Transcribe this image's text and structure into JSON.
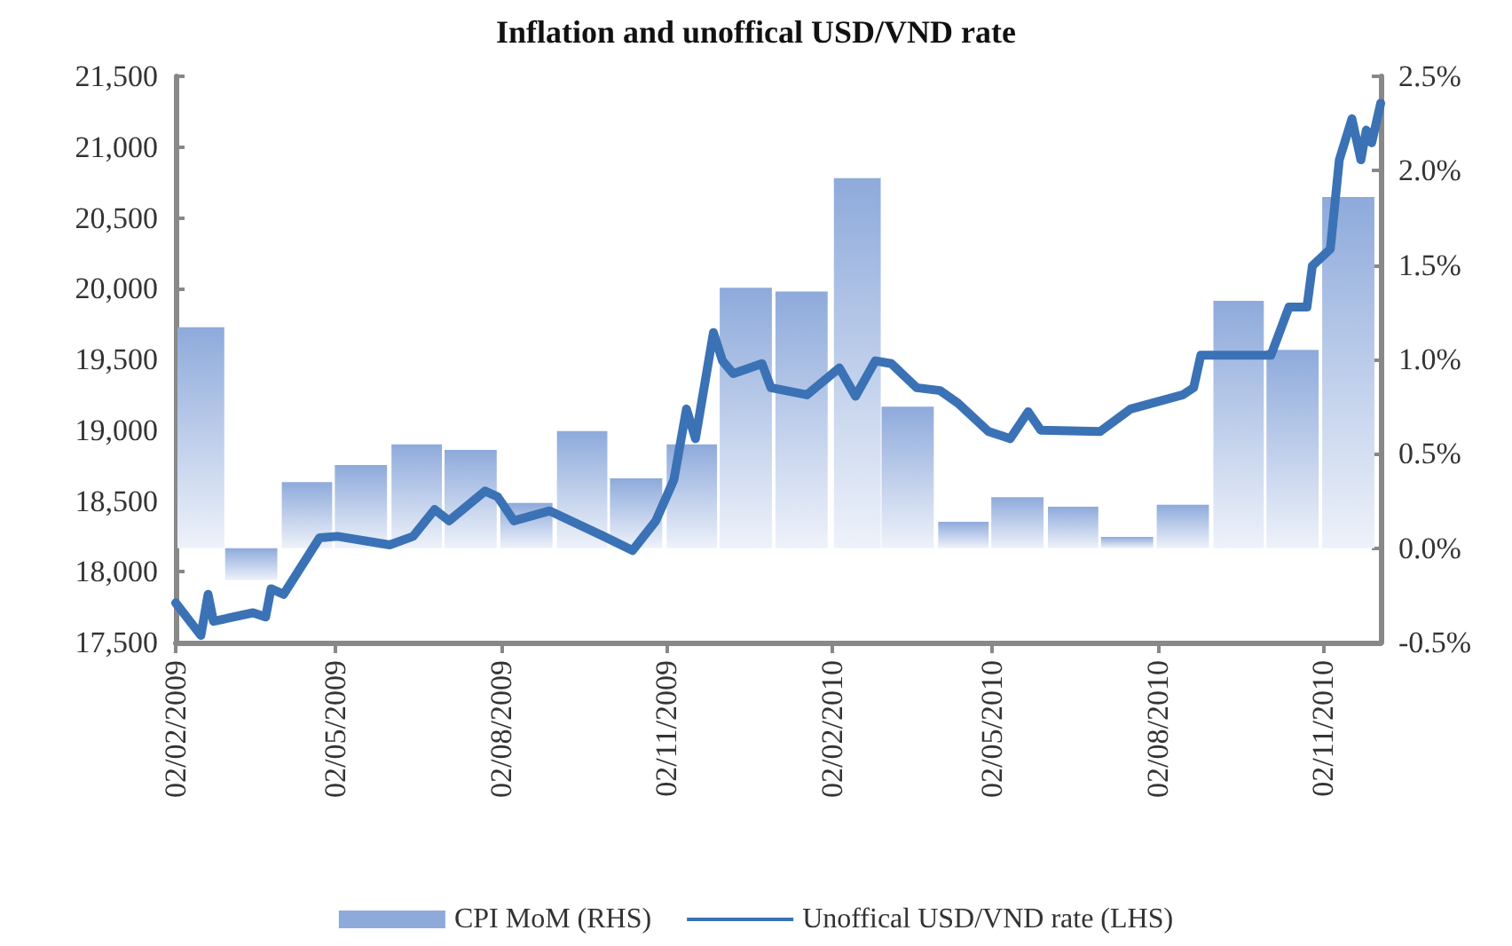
{
  "chart_data": {
    "type": "line",
    "title": "Inflation and unoffical USD/VND rate",
    "xlim": [
      "2009-02-02",
      "2010-12-04"
    ],
    "xticks": [
      {
        "value": "2009-02-02",
        "label": "02/02/2009"
      },
      {
        "value": "2009-05-02",
        "label": "02/05/2009"
      },
      {
        "value": "2009-08-02",
        "label": "02/08/2009"
      },
      {
        "value": "2009-11-02",
        "label": "02/11/2009"
      },
      {
        "value": "2010-02-02",
        "label": "02/02/2010"
      },
      {
        "value": "2010-05-02",
        "label": "02/05/2010"
      },
      {
        "value": "2010-08-02",
        "label": "02/08/2010"
      },
      {
        "value": "2010-11-02",
        "label": "02/11/2010"
      }
    ],
    "ylim": [
      17500,
      21500
    ],
    "yticks": [
      {
        "value": 17500,
        "label": "17,500"
      },
      {
        "value": 18000,
        "label": "18,000"
      },
      {
        "value": 18500,
        "label": "18,500"
      },
      {
        "value": 19000,
        "label": "19,000"
      },
      {
        "value": 19500,
        "label": "19,500"
      },
      {
        "value": 20000,
        "label": "20,000"
      },
      {
        "value": 20500,
        "label": "20,500"
      },
      {
        "value": 21000,
        "label": "21,000"
      },
      {
        "value": 21500,
        "label": "21,500"
      }
    ],
    "y2lim": [
      -0.5,
      2.5
    ],
    "y2ticks": [
      {
        "value": -0.5,
        "label": "-0.5%"
      },
      {
        "value": 0,
        "label": "0.0%"
      },
      {
        "value": 0.5,
        "label": "0.5%"
      },
      {
        "value": 1,
        "label": "1.0%"
      },
      {
        "value": 1.5,
        "label": "1.5%"
      },
      {
        "value": 2,
        "label": "2.0%"
      },
      {
        "value": 2.5,
        "label": "2.5%"
      }
    ],
    "grid": false,
    "legend": "bottom",
    "marker": "none",
    "line_style": "solid",
    "series": [
      {
        "name": "CPI MoM (RHS)",
        "type": "bar",
        "axis": "y2",
        "color": "#8eaadb",
        "x": [
          "2009-02-16",
          "2009-03-16",
          "2009-04-16",
          "2009-05-16",
          "2009-06-16",
          "2009-07-16",
          "2009-08-16",
          "2009-09-16",
          "2009-10-16",
          "2009-11-16",
          "2009-12-16",
          "2010-01-16",
          "2010-02-16",
          "2010-03-16",
          "2010-04-16",
          "2010-05-16",
          "2010-06-16",
          "2010-07-16",
          "2010-08-16",
          "2010-09-16",
          "2010-10-16",
          "2010-11-16"
        ],
        "values": [
          1.17,
          -0.17,
          0.35,
          0.44,
          0.55,
          0.52,
          0.24,
          0.62,
          0.37,
          0.55,
          1.38,
          1.36,
          1.96,
          0.75,
          0.14,
          0.27,
          0.22,
          0.06,
          0.23,
          1.31,
          1.05,
          1.86
        ]
      },
      {
        "name": "Unoffical USD/VND rate (LHS)",
        "color": "#3a72b5",
        "x": [
          "2009-02-02",
          "2009-02-16",
          "2009-02-20",
          "2009-02-23",
          "2009-03-17",
          "2009-03-24",
          "2009-03-27",
          "2009-04-03",
          "2009-04-23",
          "2009-05-03",
          "2009-06-01",
          "2009-06-14",
          "2009-06-26",
          "2009-07-04",
          "2009-07-24",
          "2009-07-31",
          "2009-08-09",
          "2009-08-29",
          "2009-09-28",
          "2009-10-14",
          "2009-10-27",
          "2009-11-06",
          "2009-11-13",
          "2009-11-18",
          "2009-11-28",
          "2009-12-03",
          "2009-12-09",
          "2009-12-25",
          "2009-12-30",
          "2010-01-19",
          "2010-02-06",
          "2010-02-15",
          "2010-02-26",
          "2010-03-07",
          "2010-03-21",
          "2010-04-03",
          "2010-04-13",
          "2010-04-30",
          "2010-05-12",
          "2010-05-22",
          "2010-05-29",
          "2010-07-01",
          "2010-07-18",
          "2010-08-16",
          "2010-08-22",
          "2010-08-26",
          "2010-10-04",
          "2010-10-14",
          "2010-10-24",
          "2010-10-27",
          "2010-11-06",
          "2010-11-11",
          "2010-11-18",
          "2010-11-23",
          "2010-11-26",
          "2010-11-29",
          "2010-12-04"
        ],
        "values": [
          17780,
          17550,
          17840,
          17650,
          17710,
          17680,
          17880,
          17840,
          18240,
          18250,
          18190,
          18250,
          18440,
          18360,
          18570,
          18530,
          18360,
          18430,
          18250,
          18150,
          18360,
          18650,
          19150,
          18940,
          19690,
          19490,
          19400,
          19470,
          19300,
          19250,
          19440,
          19240,
          19490,
          19470,
          19300,
          19280,
          19190,
          18990,
          18940,
          19130,
          19000,
          18990,
          19150,
          19250,
          19300,
          19530,
          19530,
          19870,
          19870,
          20160,
          20280,
          20910,
          21200,
          20910,
          21120,
          21030,
          21310
        ]
      }
    ]
  }
}
